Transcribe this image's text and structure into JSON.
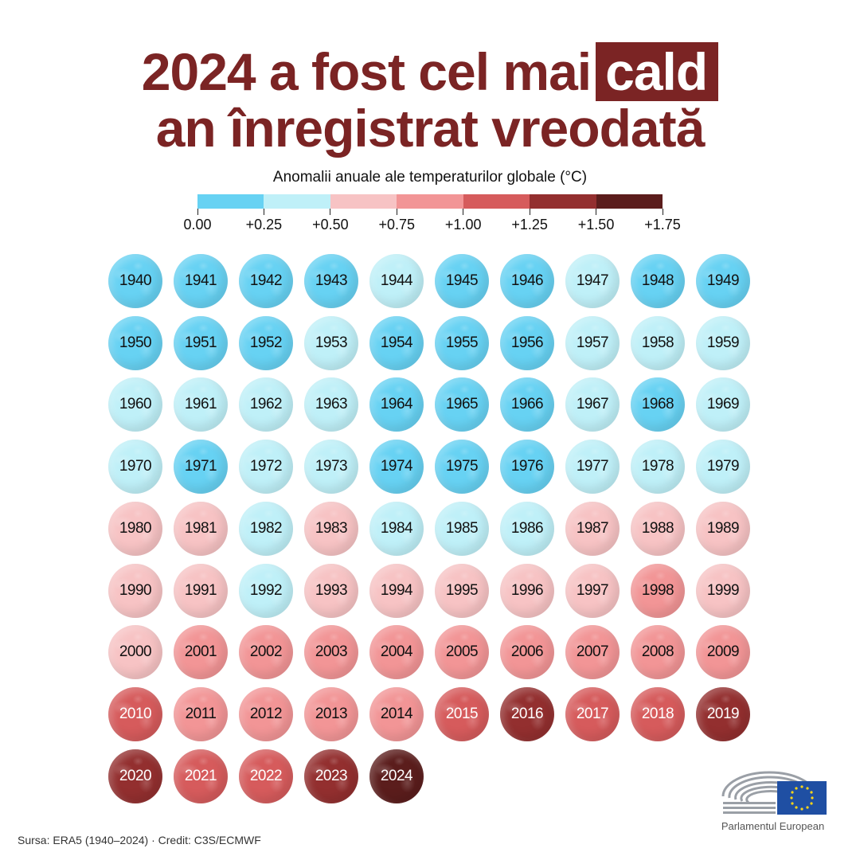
{
  "title": {
    "line1_pre": "2024 a fost cel mai",
    "line1_highlight": "cald",
    "line2": "an înregistrat vreodată"
  },
  "colors": {
    "title": "#7b2424",
    "bins": [
      "#67d2f3",
      "#bff0f8",
      "#f7c3c4",
      "#f29596",
      "#d65b5c",
      "#932f2f",
      "#5b1d1c"
    ]
  },
  "chart_data": {
    "type": "heatmap",
    "title": "Anomalii anuale ale temperaturilor globale (°C)",
    "scale": {
      "thresholds": [
        0.0,
        0.25,
        0.5,
        0.75,
        1.0,
        1.25,
        1.5,
        1.75
      ],
      "labels": [
        "0.00",
        "+0.25",
        "+0.50",
        "+0.75",
        "+1.00",
        "+1.25",
        "+1.50",
        "+1.75"
      ]
    },
    "years": [
      1940,
      1941,
      1942,
      1943,
      1944,
      1945,
      1946,
      1947,
      1948,
      1949,
      1950,
      1951,
      1952,
      1953,
      1954,
      1955,
      1956,
      1957,
      1958,
      1959,
      1960,
      1961,
      1962,
      1963,
      1964,
      1965,
      1966,
      1967,
      1968,
      1969,
      1970,
      1971,
      1972,
      1973,
      1974,
      1975,
      1976,
      1977,
      1978,
      1979,
      1980,
      1981,
      1982,
      1983,
      1984,
      1985,
      1986,
      1987,
      1988,
      1989,
      1990,
      1991,
      1992,
      1993,
      1994,
      1995,
      1996,
      1997,
      1998,
      1999,
      2000,
      2001,
      2002,
      2003,
      2004,
      2005,
      2006,
      2007,
      2008,
      2009,
      2010,
      2011,
      2012,
      2013,
      2014,
      2015,
      2016,
      2017,
      2018,
      2019,
      2020,
      2021,
      2022,
      2023,
      2024
    ],
    "anomaly_bin": [
      0,
      0,
      0,
      0,
      1,
      0,
      0,
      1,
      0,
      0,
      0,
      0,
      0,
      1,
      0,
      0,
      0,
      1,
      1,
      1,
      1,
      1,
      1,
      1,
      0,
      0,
      0,
      1,
      0,
      1,
      1,
      0,
      1,
      1,
      0,
      0,
      0,
      1,
      1,
      1,
      2,
      2,
      1,
      2,
      1,
      1,
      1,
      2,
      2,
      2,
      2,
      2,
      1,
      2,
      2,
      2,
      2,
      2,
      3,
      2,
      2,
      3,
      3,
      3,
      3,
      3,
      3,
      3,
      3,
      3,
      4,
      3,
      3,
      3,
      3,
      4,
      5,
      4,
      4,
      5,
      5,
      4,
      4,
      5,
      6
    ]
  },
  "footer": {
    "source": "Sursa: ERA5 (1940–2024) · Credit: C3S/ECMWF"
  },
  "logo": {
    "name": "Parlamentul European"
  }
}
